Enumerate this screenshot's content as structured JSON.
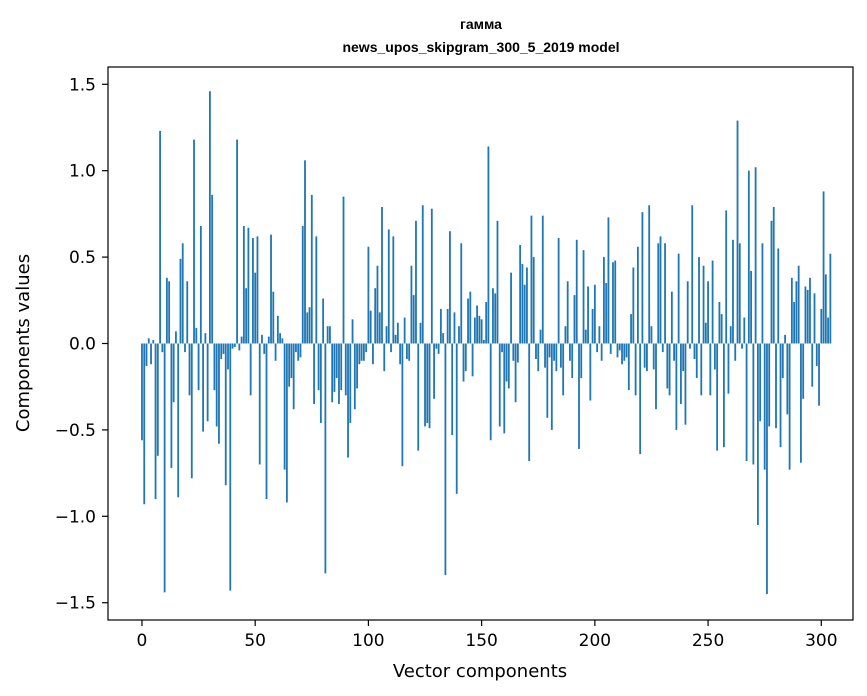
{
  "chart_data": {
    "type": "bar",
    "title": "гамма",
    "subtitle": "news_upos_skipgram_300_5_2019 model",
    "xlabel": "Vector components",
    "ylabel": "Components values",
    "xlim": [
      -15,
      314
    ],
    "ylim": [
      -1.6,
      1.6
    ],
    "xticks": [
      0,
      50,
      100,
      150,
      200,
      250,
      300
    ],
    "xtick_labels": [
      "0",
      "50",
      "100",
      "150",
      "200",
      "250",
      "300"
    ],
    "yticks": [
      -1.5,
      -1.0,
      -0.5,
      0.0,
      0.5,
      1.0,
      1.5
    ],
    "ytick_labels": [
      "−1.5",
      "−1.0",
      "−0.5",
      "0.0",
      "0.5",
      "1.0",
      "1.5"
    ],
    "bar_color": "#1f77b4",
    "x_start": 0,
    "values": [
      -0.56,
      -0.93,
      -0.13,
      0.03,
      -0.12,
      0.02,
      -0.9,
      -0.65,
      1.23,
      -0.05,
      -1.44,
      0.38,
      0.36,
      -0.72,
      -0.34,
      0.07,
      -0.89,
      0.49,
      0.58,
      -0.05,
      0.36,
      -0.3,
      -0.78,
      1.18,
      0.09,
      -0.27,
      0.68,
      -0.51,
      0.06,
      -0.45,
      1.46,
      0.86,
      -0.27,
      -0.48,
      -0.58,
      -0.09,
      -0.06,
      -0.82,
      -0.15,
      -1.43,
      -0.03,
      -0.02,
      1.18,
      -0.04,
      0.04,
      0.68,
      0.32,
      0.67,
      -0.3,
      0.61,
      0.41,
      0.62,
      -0.7,
      0.05,
      -0.06,
      -0.9,
      0.04,
      0.63,
      0.3,
      -0.1,
      0.16,
      0.06,
      0.03,
      -0.73,
      -0.92,
      -0.25,
      -0.2,
      -0.38,
      -0.05,
      -0.1,
      -0.08,
      0.68,
      1.06,
      0.18,
      0.21,
      0.86,
      -0.35,
      0.62,
      -0.27,
      -0.46,
      0.26,
      -1.33,
      0.1,
      0.1,
      -0.34,
      -0.28,
      -0.2,
      -0.35,
      -0.27,
      0.85,
      -0.3,
      -0.66,
      -0.46,
      0.14,
      -0.38,
      -0.26,
      -0.12,
      -0.1,
      -0.1,
      -0.05,
      0.56,
      0.19,
      -0.12,
      0.32,
      0.45,
      0.18,
      0.79,
      -0.16,
      0.1,
      0.66,
      -0.05,
      0.62,
      0.05,
      0.12,
      -0.12,
      -0.71,
      0.15,
      -0.09,
      -0.1,
      0.45,
      0.28,
      0.71,
      -0.62,
      0.12,
      0.8,
      -0.48,
      -0.46,
      -0.49,
      0.78,
      -0.32,
      -0.03,
      -0.06,
      0.2,
      0.06,
      -1.34,
      0.2,
      0.65,
      -0.53,
      0.18,
      -0.87,
      0.1,
      0.58,
      -0.22,
      -0.16,
      0.26,
      0.3,
      -0.19,
      0.15,
      0.22,
      0.16,
      0.14,
      0.02,
      0.24,
      1.14,
      -0.56,
      0.32,
      0.29,
      0.71,
      -0.48,
      -0.05,
      -0.52,
      -0.22,
      -0.26,
      0.41,
      -0.1,
      -0.34,
      -0.11,
      0.57,
      0.46,
      0.34,
      0.44,
      -0.68,
      0.74,
      0.5,
      -0.09,
      -0.16,
      0.08,
      0.74,
      -0.14,
      -0.43,
      -0.08,
      -0.5,
      -0.1,
      -0.16,
      0.61,
      -0.14,
      -0.3,
      0.1,
      0.36,
      -0.1,
      -0.2,
      0.28,
      0.6,
      -0.61,
      -0.2,
      0.54,
      0.08,
      0.33,
      -0.33,
      0.2,
      0.34,
      -0.05,
      0.1,
      -0.1,
      0.5,
      0.35,
      0.73,
      -0.06,
      0.47,
      0.48,
      -0.08,
      -0.04,
      -0.12,
      -0.1,
      -0.08,
      -0.27,
      0.17,
      0.44,
      -0.3,
      0.56,
      -0.64,
      0.76,
      -0.14,
      -0.16,
      0.8,
      0.1,
      -0.15,
      -0.38,
      0.58,
      0.62,
      -0.05,
      0.58,
      -0.26,
      -0.3,
      0.3,
      -0.1,
      -0.5,
      0.52,
      -0.35,
      -0.16,
      -0.47,
      0.36,
      -0.03,
      0.8,
      -0.09,
      -0.2,
      0.5,
      -0.3,
      0.45,
      0.12,
      0.36,
      -0.3,
      0.48,
      -0.15,
      -0.62,
      0.24,
      0.17,
      -0.6,
      0.77,
      -0.29,
      0.1,
      0.6,
      -0.1,
      1.29,
      0.58,
      -0.03,
      0.15,
      -0.68,
      1.0,
      0.42,
      -0.7,
      1.02,
      -1.05,
      -0.45,
      0.58,
      -0.73,
      -1.45,
      -0.48,
      0.71,
      0.79,
      -0.49,
      0.55,
      -0.6,
      -0.2,
      0.05,
      -0.41,
      -0.73,
      0.38,
      0.24,
      0.36,
      0.45,
      -0.69,
      -0.32,
      0.33,
      0.31,
      0.38,
      -0.25,
      0.29,
      -0.13,
      -0.36,
      0.2,
      0.88,
      0.4,
      0.15,
      0.52
    ]
  }
}
